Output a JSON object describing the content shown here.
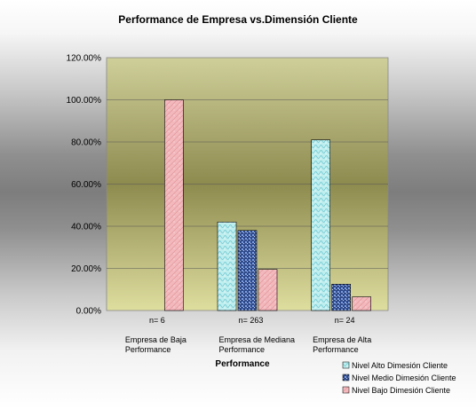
{
  "chart_data": {
    "type": "bar",
    "title": "Performance de Empresa vs.Dimensión Cliente",
    "xlabel": "Performance",
    "ylabel": "",
    "ylim": [
      0,
      120
    ],
    "y_ticks": [
      "0.00%",
      "20.00%",
      "40.00%",
      "60.00%",
      "80.00%",
      "100.00%",
      "120.00%"
    ],
    "categories": [
      [
        "Empresa de Baja",
        "Performance"
      ],
      [
        "Empresa de Mediana",
        "Performance"
      ],
      [
        "Empresa de Alta",
        "Performance"
      ]
    ],
    "annotations": [
      "n= 6",
      "n= 263",
      "n= 24"
    ],
    "series": [
      {
        "name": "Nivel Alto Dimesión Cliente",
        "values": [
          0,
          42.0,
          81.0
        ],
        "color": "#bfeeef"
      },
      {
        "name": "Nivel Medio Dimesión Cliente",
        "values": [
          0,
          38.0,
          12.5
        ],
        "color": "#2f4a8a"
      },
      {
        "name": "Nivel Bajo Dimesión Cliente",
        "values": [
          100.0,
          19.5,
          6.5
        ],
        "color": "#f2b8bc"
      }
    ],
    "grid": true,
    "legend_position": "bottom-right",
    "plot_colors": {
      "wall_top": "#cfcf9a",
      "wall_mid": "#8e8b4f",
      "wall_bottom": "#dede9f"
    }
  }
}
